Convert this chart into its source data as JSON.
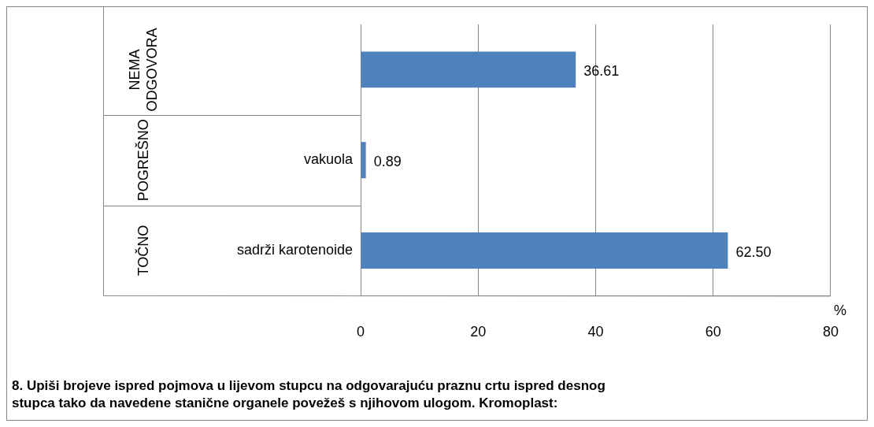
{
  "chart_data": {
    "type": "bar",
    "orientation": "horizontal",
    "title": "8. Upiši brojeve ispred pojmova u lijevom stupcu na odgovarajuću praznu crtu ispred desnog stupca tako da navedene stanične organele povežeš s njihovom ulogom. Kromoplast:",
    "categories": [
      null,
      "vakuola",
      "sadrži karotenoide"
    ],
    "values": [
      36.61,
      0.89,
      62.5
    ],
    "value_labels": [
      "36.61",
      "0.89",
      "62.50"
    ],
    "color": "#4f81bd",
    "xlabel": "%",
    "xlim": [
      0,
      80
    ],
    "xticks": [
      0,
      20,
      40,
      60,
      80
    ],
    "grid": "x",
    "annotations": [
      "NEMA ODGOVORA",
      "POGREŠNO",
      "TOČNO"
    ]
  }
}
